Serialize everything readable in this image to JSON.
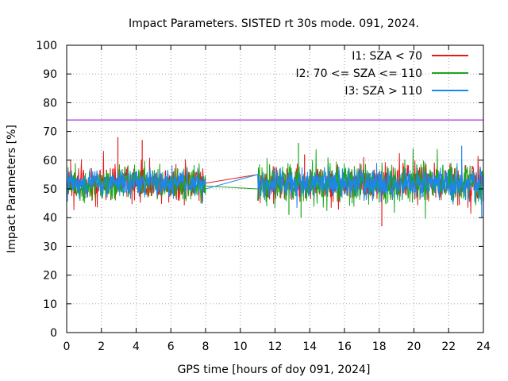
{
  "chart_data": {
    "type": "line",
    "title": "Impact Parameters. SISTED rt 30s mode. 091, 2024.",
    "xlabel": "GPS time [hours of doy 091, 2024]",
    "ylabel": "Impact Parameters [%]",
    "xlim": [
      0,
      24
    ],
    "ylim": [
      0,
      100
    ],
    "xticks": [
      0,
      2,
      4,
      6,
      8,
      10,
      12,
      14,
      16,
      18,
      20,
      22,
      24
    ],
    "yticks": [
      0,
      10,
      20,
      30,
      40,
      50,
      60,
      70,
      80,
      90,
      100
    ],
    "grid": true,
    "legend_position": "top-right",
    "reference_line": {
      "y": 74,
      "color": "#9400d3"
    },
    "series": [
      {
        "name": "I1: SZA < 70",
        "color": "#e41a1c",
        "segments": [
          {
            "x_start": 0.0,
            "x_end": 8.0,
            "center": 52,
            "spread": 7
          },
          {
            "x_start": 11.0,
            "x_end": 24.0,
            "center": 52,
            "spread": 7
          }
        ],
        "connector": [
          [
            8.0,
            52
          ],
          [
            11.0,
            55
          ]
        ],
        "spikes": [
          {
            "x": 2.95,
            "y": 68
          },
          {
            "x": 4.35,
            "y": 67
          },
          {
            "x": 18.15,
            "y": 37
          },
          {
            "x": 13.7,
            "y": 62
          }
        ]
      },
      {
        "name": "I2: 70 <= SZA <= 110",
        "color": "#1aa71a",
        "segments": [
          {
            "x_start": 0.0,
            "x_end": 8.0,
            "center": 52,
            "spread": 7
          },
          {
            "x_start": 11.0,
            "x_end": 24.0,
            "center": 52,
            "spread": 8
          }
        ],
        "connector": [
          [
            8.0,
            51
          ],
          [
            11.0,
            50
          ]
        ],
        "spikes": [
          {
            "x": 13.35,
            "y": 66
          },
          {
            "x": 12.8,
            "y": 41
          },
          {
            "x": 13.5,
            "y": 40
          }
        ]
      },
      {
        "name": "I3: SZA > 110",
        "color": "#1c86ee",
        "segments": [
          {
            "x_start": 0.0,
            "x_end": 8.0,
            "center": 52,
            "spread": 5
          },
          {
            "x_start": 11.0,
            "x_end": 24.0,
            "center": 52,
            "spread": 6
          }
        ],
        "connector": [
          [
            8.0,
            50
          ],
          [
            11.0,
            55
          ]
        ],
        "spikes": [
          {
            "x": 22.75,
            "y": 65
          },
          {
            "x": 23.9,
            "y": 40
          }
        ]
      }
    ]
  }
}
